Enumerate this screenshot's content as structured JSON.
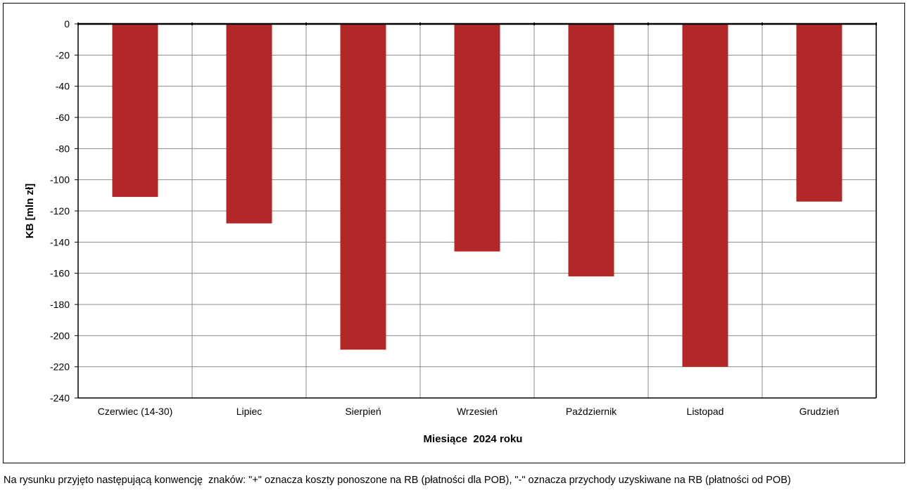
{
  "chart_data": {
    "type": "bar",
    "categories": [
      "Czerwiec (14-30)",
      "Lipiec",
      "Sierpień",
      "Wrzesień",
      "Październik",
      "Listopad",
      "Grudzień"
    ],
    "values": [
      -111,
      -128,
      -209,
      -146,
      -162,
      -220,
      -114
    ],
    "xlabel": "Miesiące  2024 roku",
    "ylabel": "KB [mln zł]",
    "ylim": [
      -240,
      0
    ],
    "yticks": [
      0,
      -20,
      -40,
      -60,
      -80,
      -100,
      -120,
      -140,
      -160,
      -180,
      -200,
      -220,
      -240
    ],
    "bar_color": "#b22828",
    "grid": true
  },
  "footnote": "Na rysunku przyjęto następującą konwencję  znaków: \"+\" oznacza koszty ponoszone na RB (płatności dla POB), \"-\" oznacza przychody uzyskiwane na RB (płatności od POB)"
}
